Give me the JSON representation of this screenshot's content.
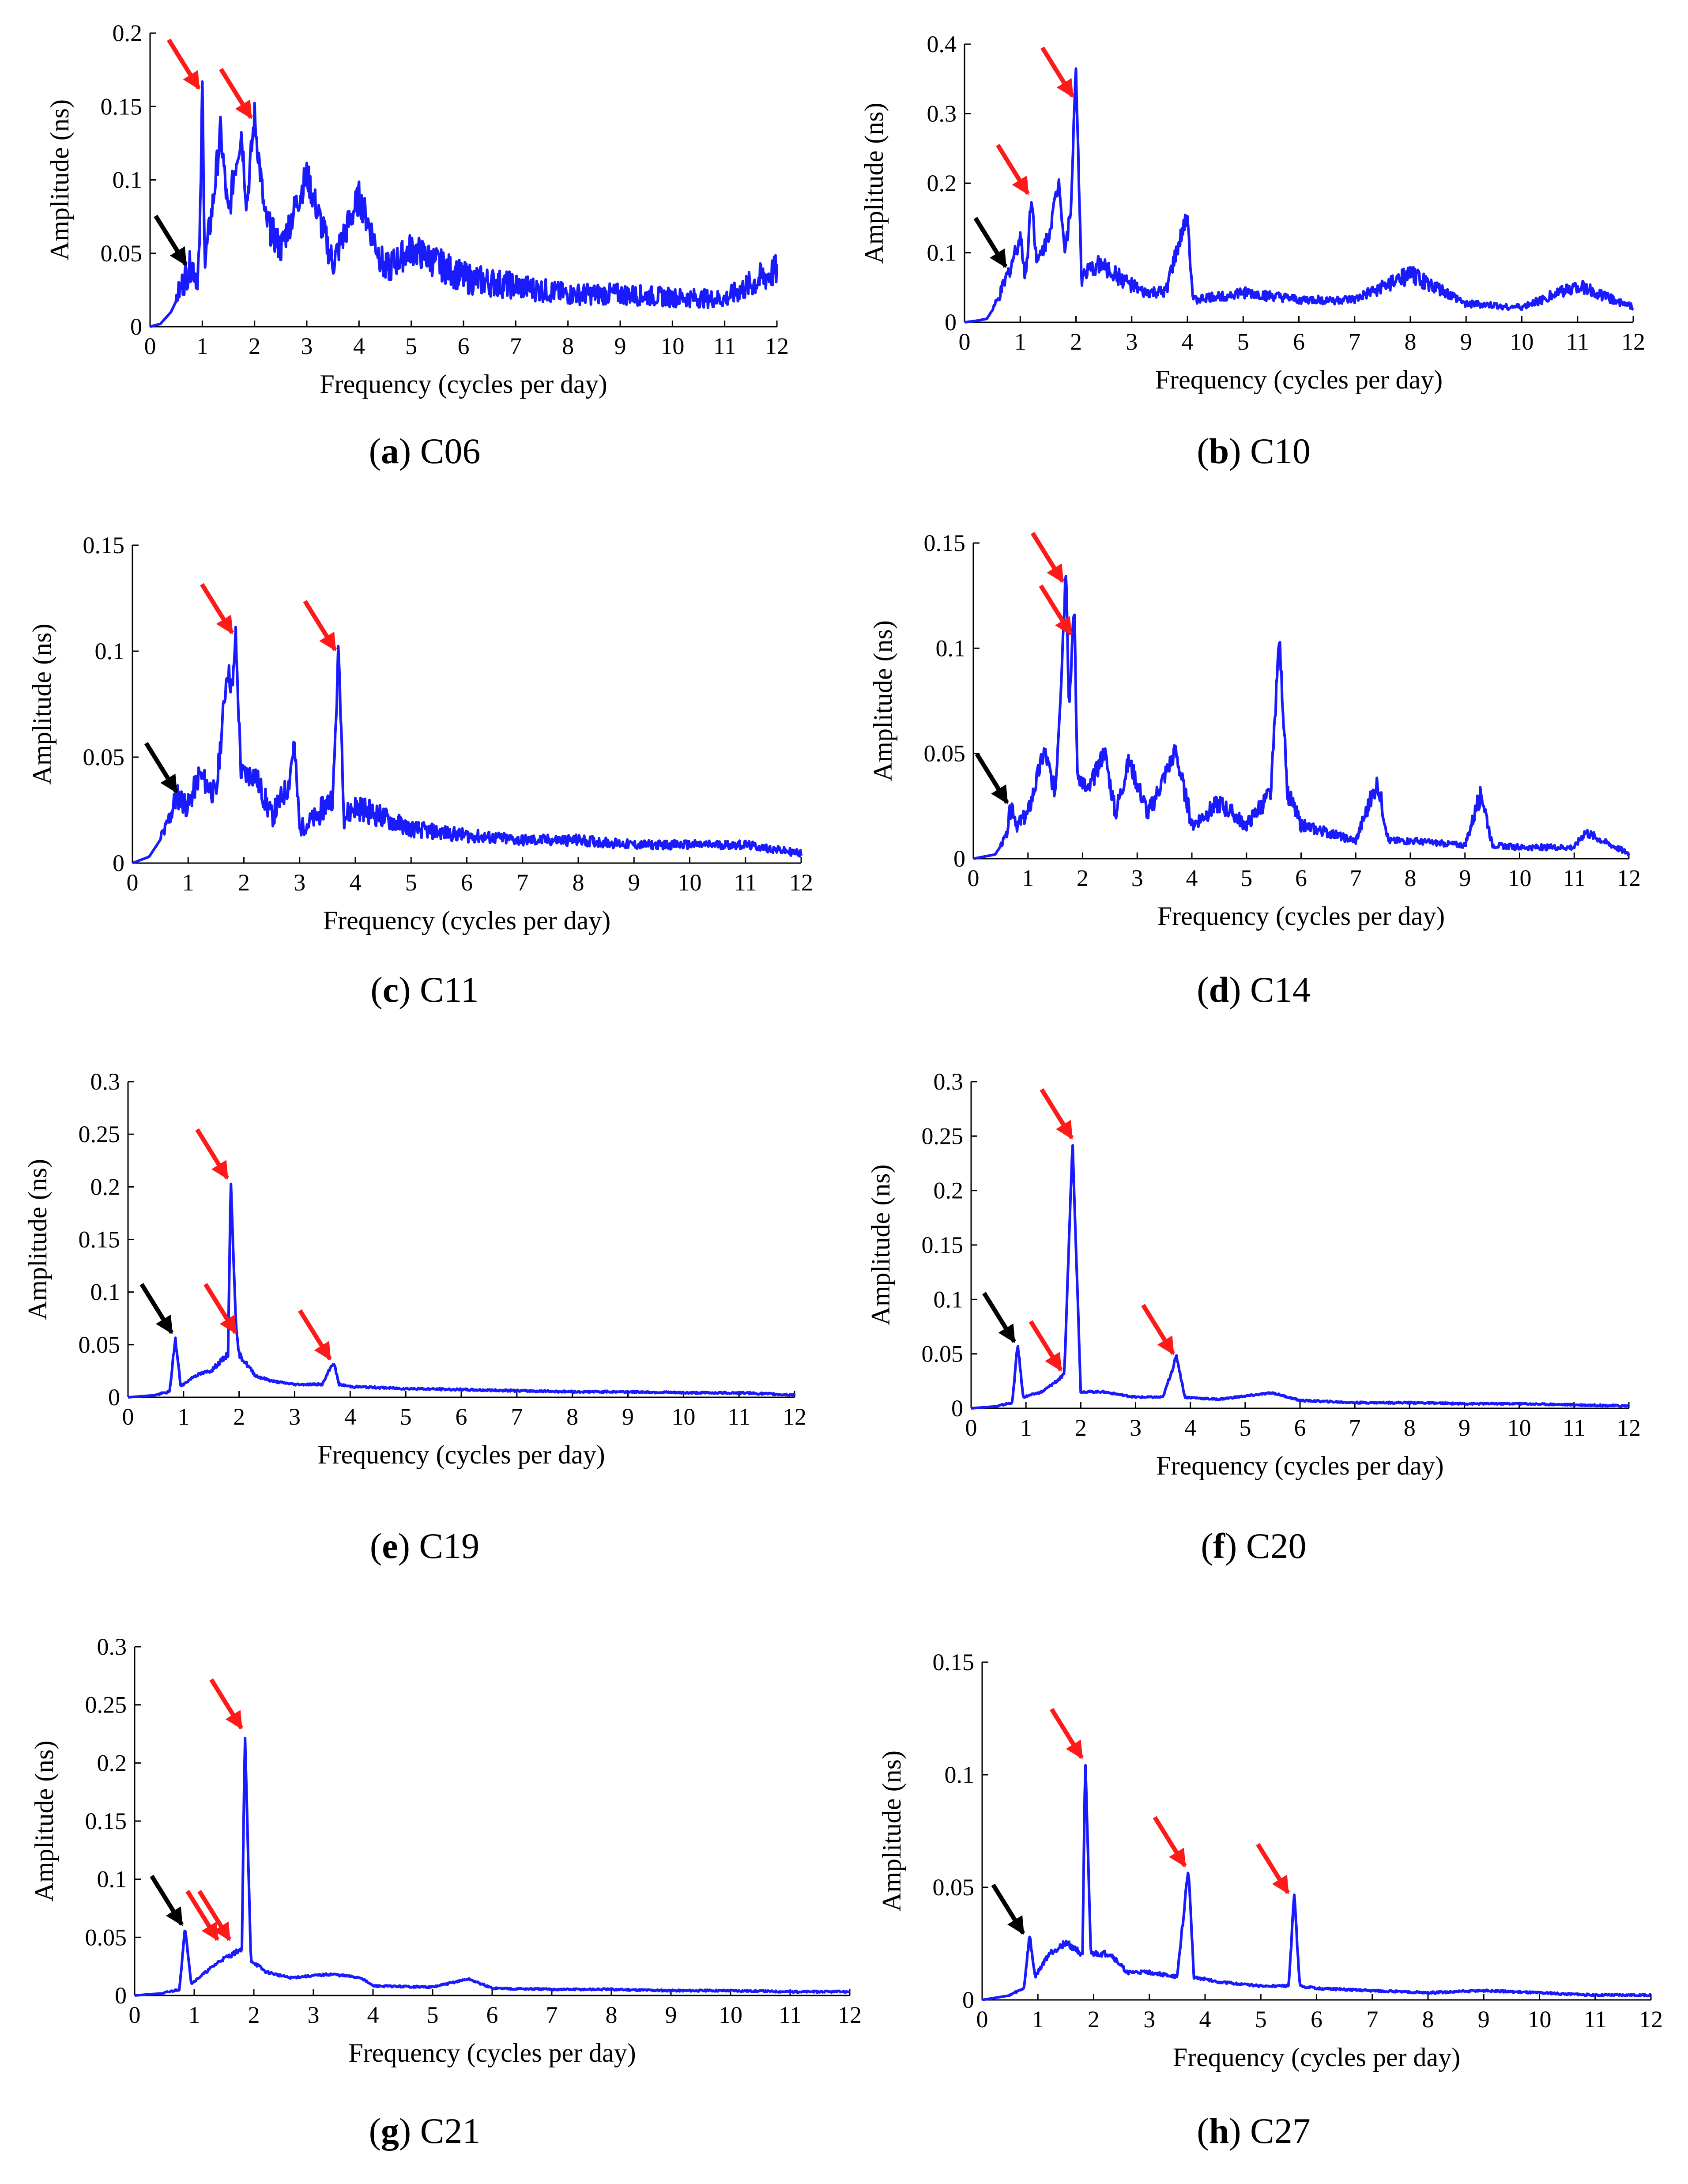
{
  "figure": {
    "frequency_axis_label": "Frequency (cycles per day)",
    "amplitude_axis_label": "Amplitude (ns)",
    "line_color": "#1a1aff",
    "red_arrow_color": "#ff1a1a",
    "black_arrow_color": "#000000"
  },
  "chart_data": [
    {
      "type": "line",
      "panel": "a",
      "caption_letter": "a",
      "caption_label": "C06",
      "title": "",
      "xlabel": "Frequency (cycles per day)",
      "ylabel": "Amplitude (ns)",
      "xlim": [
        0,
        12
      ],
      "ylim": [
        0,
        0.2
      ],
      "xticks": [
        0,
        1,
        2,
        3,
        4,
        5,
        6,
        7,
        8,
        9,
        10,
        11,
        12
      ],
      "yticks": [
        0,
        0.05,
        0.1,
        0.15,
        0.2
      ],
      "ytick_labels": [
        "0",
        "0.05",
        "0.1",
        "0.15",
        "0.2"
      ],
      "noise": 0.022,
      "seed": 6,
      "x": [
        0,
        0.2,
        0.4,
        0.6,
        0.8,
        0.9,
        0.95,
        1.0,
        1.05,
        1.2,
        1.35,
        1.5,
        1.6,
        1.75,
        1.85,
        2.0,
        2.2,
        2.5,
        3.0,
        3.5,
        4.0,
        4.5,
        5.0,
        6.0,
        7.0,
        8.0,
        9.0,
        10.0,
        11.0,
        12.0
      ],
      "y": [
        0,
        0.002,
        0.01,
        0.025,
        0.04,
        0.03,
        0.05,
        0.16,
        0.04,
        0.08,
        0.13,
        0.07,
        0.1,
        0.13,
        0.08,
        0.14,
        0.07,
        0.05,
        0.1,
        0.04,
        0.085,
        0.035,
        0.05,
        0.03,
        0.025,
        0.02,
        0.02,
        0.018,
        0.017,
        0.035
      ],
      "arrows": [
        {
          "color": "black",
          "x": 0.75,
          "y": 0.04
        },
        {
          "color": "red",
          "x": 1.0,
          "y": 0.16
        },
        {
          "color": "red",
          "x": 2.0,
          "y": 0.14
        }
      ]
    },
    {
      "type": "line",
      "panel": "b",
      "caption_letter": "b",
      "caption_label": "C10",
      "title": "",
      "xlabel": "Frequency (cycles per day)",
      "ylabel": "Amplitude (ns)",
      "xlim": [
        0,
        12
      ],
      "ylim": [
        0,
        0.4
      ],
      "xticks": [
        0,
        1,
        2,
        3,
        4,
        5,
        6,
        7,
        8,
        9,
        10,
        11,
        12
      ],
      "yticks": [
        0,
        0.1,
        0.2,
        0.3,
        0.4
      ],
      "ytick_labels": [
        "0",
        "0.1",
        "0.2",
        "0.3",
        "0.4"
      ],
      "noise": 0.025,
      "seed": 10,
      "x": [
        0,
        0.2,
        0.4,
        0.6,
        0.8,
        1.0,
        1.1,
        1.2,
        1.3,
        1.5,
        1.7,
        1.8,
        1.9,
        2.0,
        2.1,
        2.4,
        2.8,
        3.2,
        3.6,
        4.0,
        4.1,
        5.0,
        6.0,
        7.0,
        8.0,
        9.0,
        10.0,
        11.0,
        12.0
      ],
      "y": [
        0,
        0.002,
        0.005,
        0.03,
        0.07,
        0.12,
        0.06,
        0.18,
        0.08,
        0.12,
        0.2,
        0.1,
        0.15,
        0.36,
        0.06,
        0.08,
        0.06,
        0.04,
        0.04,
        0.15,
        0.03,
        0.04,
        0.03,
        0.03,
        0.065,
        0.025,
        0.02,
        0.05,
        0.02
      ],
      "arrows": [
        {
          "color": "black",
          "x": 0.8,
          "y": 0.075
        },
        {
          "color": "red",
          "x": 1.2,
          "y": 0.18
        },
        {
          "color": "red",
          "x": 2.0,
          "y": 0.32
        }
      ]
    },
    {
      "type": "line",
      "panel": "c",
      "caption_letter": "c",
      "caption_label": "C11",
      "title": "",
      "xlabel": "Frequency (cycles per day)",
      "ylabel": "Amplitude (ns)",
      "xlim": [
        0,
        12
      ],
      "ylim": [
        0,
        0.15
      ],
      "xticks": [
        0,
        1,
        2,
        3,
        4,
        5,
        6,
        7,
        8,
        9,
        10,
        11,
        12
      ],
      "yticks": [
        0,
        0.05,
        0.1,
        0.15
      ],
      "ytick_labels": [
        "0",
        "0.05",
        "0.1",
        "0.15"
      ],
      "noise": 0.012,
      "seed": 11,
      "x": [
        0,
        0.3,
        0.6,
        0.8,
        1.0,
        1.2,
        1.5,
        1.7,
        1.8,
        1.85,
        1.95,
        2.2,
        2.5,
        2.8,
        2.9,
        3.0,
        3.3,
        3.6,
        3.7,
        3.8,
        4.0,
        5.0,
        6.0,
        7.0,
        8.0,
        9.0,
        10.0,
        11.0,
        12.0
      ],
      "y": [
        0,
        0.003,
        0.015,
        0.03,
        0.025,
        0.04,
        0.03,
        0.09,
        0.08,
        0.107,
        0.04,
        0.04,
        0.02,
        0.035,
        0.055,
        0.015,
        0.02,
        0.03,
        0.1,
        0.02,
        0.025,
        0.015,
        0.012,
        0.01,
        0.01,
        0.008,
        0.008,
        0.008,
        0.004
      ],
      "arrows": [
        {
          "color": "black",
          "x": 0.85,
          "y": 0.032
        },
        {
          "color": "red",
          "x": 1.85,
          "y": 0.107
        },
        {
          "color": "red",
          "x": 3.7,
          "y": 0.099
        }
      ]
    },
    {
      "type": "line",
      "panel": "d",
      "caption_letter": "d",
      "caption_label": "C14",
      "title": "",
      "xlabel": "Frequency (cycles per day)",
      "ylabel": "Amplitude (ns)",
      "xlim": [
        0,
        12
      ],
      "ylim": [
        0,
        0.15
      ],
      "xticks": [
        0,
        1,
        2,
        3,
        4,
        5,
        6,
        7,
        8,
        9,
        10,
        11,
        12
      ],
      "yticks": [
        0,
        0.05,
        0.1,
        0.15
      ],
      "ytick_labels": [
        "0",
        "0.05",
        "0.1",
        "0.15"
      ],
      "noise": 0.009,
      "seed": 14,
      "x": [
        0,
        0.4,
        0.6,
        0.7,
        0.8,
        1.0,
        1.3,
        1.5,
        1.6,
        1.7,
        1.75,
        1.85,
        1.9,
        2.1,
        2.4,
        2.6,
        2.85,
        3.2,
        3.7,
        4.0,
        4.5,
        5.0,
        5.45,
        5.6,
        5.75,
        6.0,
        7.0,
        7.4,
        7.6,
        8.0,
        9.0,
        9.3,
        9.5,
        10.0,
        11.0,
        11.2,
        12.0
      ],
      "y": [
        0,
        0.002,
        0.01,
        0.025,
        0.015,
        0.02,
        0.05,
        0.03,
        0.08,
        0.14,
        0.07,
        0.12,
        0.04,
        0.03,
        0.05,
        0.02,
        0.045,
        0.02,
        0.05,
        0.015,
        0.025,
        0.015,
        0.03,
        0.104,
        0.03,
        0.015,
        0.008,
        0.035,
        0.008,
        0.008,
        0.006,
        0.03,
        0.006,
        0.005,
        0.005,
        0.012,
        0.002
      ],
      "arrows": [
        {
          "color": "black",
          "x": 0.68,
          "y": 0.025
        },
        {
          "color": "red",
          "x": 1.7,
          "y": 0.13
        },
        {
          "color": "red",
          "x": 1.85,
          "y": 0.105
        }
      ]
    },
    {
      "type": "line",
      "panel": "e",
      "caption_letter": "e",
      "caption_label": "C19",
      "title": "",
      "xlabel": "Frequency (cycles per day)",
      "ylabel": "Amplitude (ns)",
      "xlim": [
        0,
        12
      ],
      "ylim": [
        0,
        0.3
      ],
      "xticks": [
        0,
        1,
        2,
        3,
        4,
        5,
        6,
        7,
        8,
        9,
        10,
        11,
        12
      ],
      "yticks": [
        0,
        0.05,
        0.1,
        0.15,
        0.2,
        0.25,
        0.3
      ],
      "ytick_labels": [
        "0",
        "0.05",
        "0.1",
        "0.15",
        "0.2",
        "0.25",
        "0.3"
      ],
      "noise": 0.006,
      "seed": 19,
      "x": [
        0,
        0.5,
        0.75,
        0.85,
        0.95,
        1.2,
        1.5,
        1.8,
        1.85,
        1.95,
        2.0,
        2.3,
        2.6,
        3.0,
        3.5,
        3.7,
        3.8,
        4.0,
        5.0,
        6.0,
        7.0,
        8.0,
        9.0,
        10.0,
        11.0,
        12.0
      ],
      "y": [
        0,
        0.002,
        0.005,
        0.055,
        0.01,
        0.02,
        0.025,
        0.04,
        0.205,
        0.06,
        0.04,
        0.02,
        0.015,
        0.012,
        0.012,
        0.033,
        0.012,
        0.01,
        0.008,
        0.007,
        0.006,
        0.005,
        0.005,
        0.004,
        0.004,
        0.002
      ],
      "arrows": [
        {
          "color": "black",
          "x": 0.85,
          "y": 0.058
        },
        {
          "color": "red",
          "x": 1.85,
          "y": 0.205
        },
        {
          "color": "red",
          "x": 2.0,
          "y": 0.058
        },
        {
          "color": "red",
          "x": 3.7,
          "y": 0.033
        }
      ]
    },
    {
      "type": "line",
      "panel": "f",
      "caption_letter": "f",
      "caption_label": "C20",
      "title": "",
      "xlabel": "Frequency (cycles per day)",
      "ylabel": "Amplitude (ns)",
      "xlim": [
        0,
        12
      ],
      "ylim": [
        0,
        0.3
      ],
      "xticks": [
        0,
        1,
        2,
        3,
        4,
        5,
        6,
        7,
        8,
        9,
        10,
        11,
        12
      ],
      "yticks": [
        0,
        0.05,
        0.1,
        0.15,
        0.2,
        0.25,
        0.3
      ],
      "ytick_labels": [
        "0",
        "0.05",
        "0.1",
        "0.15",
        "0.2",
        "0.25",
        "0.3"
      ],
      "noise": 0.005,
      "seed": 20,
      "x": [
        0,
        0.5,
        0.75,
        0.85,
        0.95,
        1.3,
        1.7,
        1.85,
        2.0,
        2.4,
        3.0,
        3.5,
        3.75,
        3.9,
        4.5,
        5.5,
        6.0,
        7.0,
        8.0,
        9.0,
        10.0,
        11.0,
        12.0
      ],
      "y": [
        0,
        0.002,
        0.005,
        0.058,
        0.01,
        0.015,
        0.03,
        0.245,
        0.015,
        0.015,
        0.01,
        0.01,
        0.047,
        0.01,
        0.008,
        0.014,
        0.007,
        0.005,
        0.005,
        0.004,
        0.004,
        0.003,
        0.002
      ],
      "arrows": [
        {
          "color": "black",
          "x": 0.85,
          "y": 0.058
        },
        {
          "color": "red",
          "x": 1.7,
          "y": 0.032
        },
        {
          "color": "red",
          "x": 1.9,
          "y": 0.245
        },
        {
          "color": "red",
          "x": 3.75,
          "y": 0.047
        }
      ]
    },
    {
      "type": "line",
      "panel": "g",
      "caption_letter": "g",
      "caption_label": "C21",
      "title": "",
      "xlabel": "Frequency (cycles per day)",
      "ylabel": "Amplitude (ns)",
      "xlim": [
        0,
        12
      ],
      "ylim": [
        0,
        0.3
      ],
      "xticks": [
        0,
        1,
        2,
        3,
        4,
        5,
        6,
        7,
        8,
        9,
        10,
        11,
        12
      ],
      "yticks": [
        0,
        0.05,
        0.1,
        0.15,
        0.2,
        0.25,
        0.3
      ],
      "ytick_labels": [
        "0",
        "0.05",
        "0.1",
        "0.15",
        "0.2",
        "0.25",
        "0.3"
      ],
      "noise": 0.005,
      "seed": 21,
      "x": [
        0,
        0.5,
        0.75,
        0.85,
        0.95,
        1.2,
        1.45,
        1.65,
        1.8,
        1.85,
        1.95,
        2.2,
        2.6,
        3.3,
        3.8,
        4.0,
        5.0,
        5.6,
        6.0,
        7.0,
        8.0,
        9.0,
        10.0,
        11.0,
        12.0
      ],
      "y": [
        0,
        0.002,
        0.005,
        0.058,
        0.01,
        0.02,
        0.03,
        0.035,
        0.04,
        0.227,
        0.03,
        0.02,
        0.015,
        0.018,
        0.015,
        0.008,
        0.007,
        0.014,
        0.006,
        0.005,
        0.005,
        0.004,
        0.004,
        0.003,
        0.003
      ],
      "arrows": [
        {
          "color": "black",
          "x": 0.85,
          "y": 0.058
        },
        {
          "color": "red",
          "x": 1.45,
          "y": 0.045
        },
        {
          "color": "red",
          "x": 1.65,
          "y": 0.045
        },
        {
          "color": "red",
          "x": 1.85,
          "y": 0.227
        }
      ]
    },
    {
      "type": "line",
      "panel": "h",
      "caption_letter": "h",
      "caption_label": "C27",
      "title": "",
      "xlabel": "Frequency (cycles per day)",
      "ylabel": "Amplitude (ns)",
      "xlim": [
        0,
        12
      ],
      "ylim": [
        0,
        0.15
      ],
      "xticks": [
        0,
        1,
        2,
        3,
        4,
        5,
        6,
        7,
        8,
        9,
        10,
        11,
        12
      ],
      "yticks": [
        0,
        0.05,
        0.1,
        0.15
      ],
      "ytick_labels": [
        "0",
        "0.05",
        "0.1",
        "0.15"
      ],
      "noise": 0.003,
      "seed": 27,
      "x": [
        0,
        0.5,
        0.75,
        0.85,
        0.95,
        1.2,
        1.5,
        1.8,
        1.85,
        1.95,
        2.3,
        2.6,
        3.0,
        3.5,
        3.7,
        3.8,
        4.2,
        5.0,
        5.5,
        5.6,
        5.7,
        6.0,
        7.0,
        8.0,
        9.0,
        10.0,
        11.0,
        12.0
      ],
      "y": [
        0,
        0.002,
        0.005,
        0.028,
        0.01,
        0.02,
        0.025,
        0.02,
        0.106,
        0.02,
        0.02,
        0.012,
        0.012,
        0.01,
        0.058,
        0.01,
        0.008,
        0.006,
        0.006,
        0.046,
        0.006,
        0.005,
        0.004,
        0.003,
        0.004,
        0.003,
        0.002,
        0.002
      ],
      "arrows": [
        {
          "color": "black",
          "x": 0.8,
          "y": 0.028
        },
        {
          "color": "red",
          "x": 1.85,
          "y": 0.106
        },
        {
          "color": "red",
          "x": 3.7,
          "y": 0.058
        },
        {
          "color": "red",
          "x": 5.55,
          "y": 0.046
        }
      ]
    }
  ]
}
